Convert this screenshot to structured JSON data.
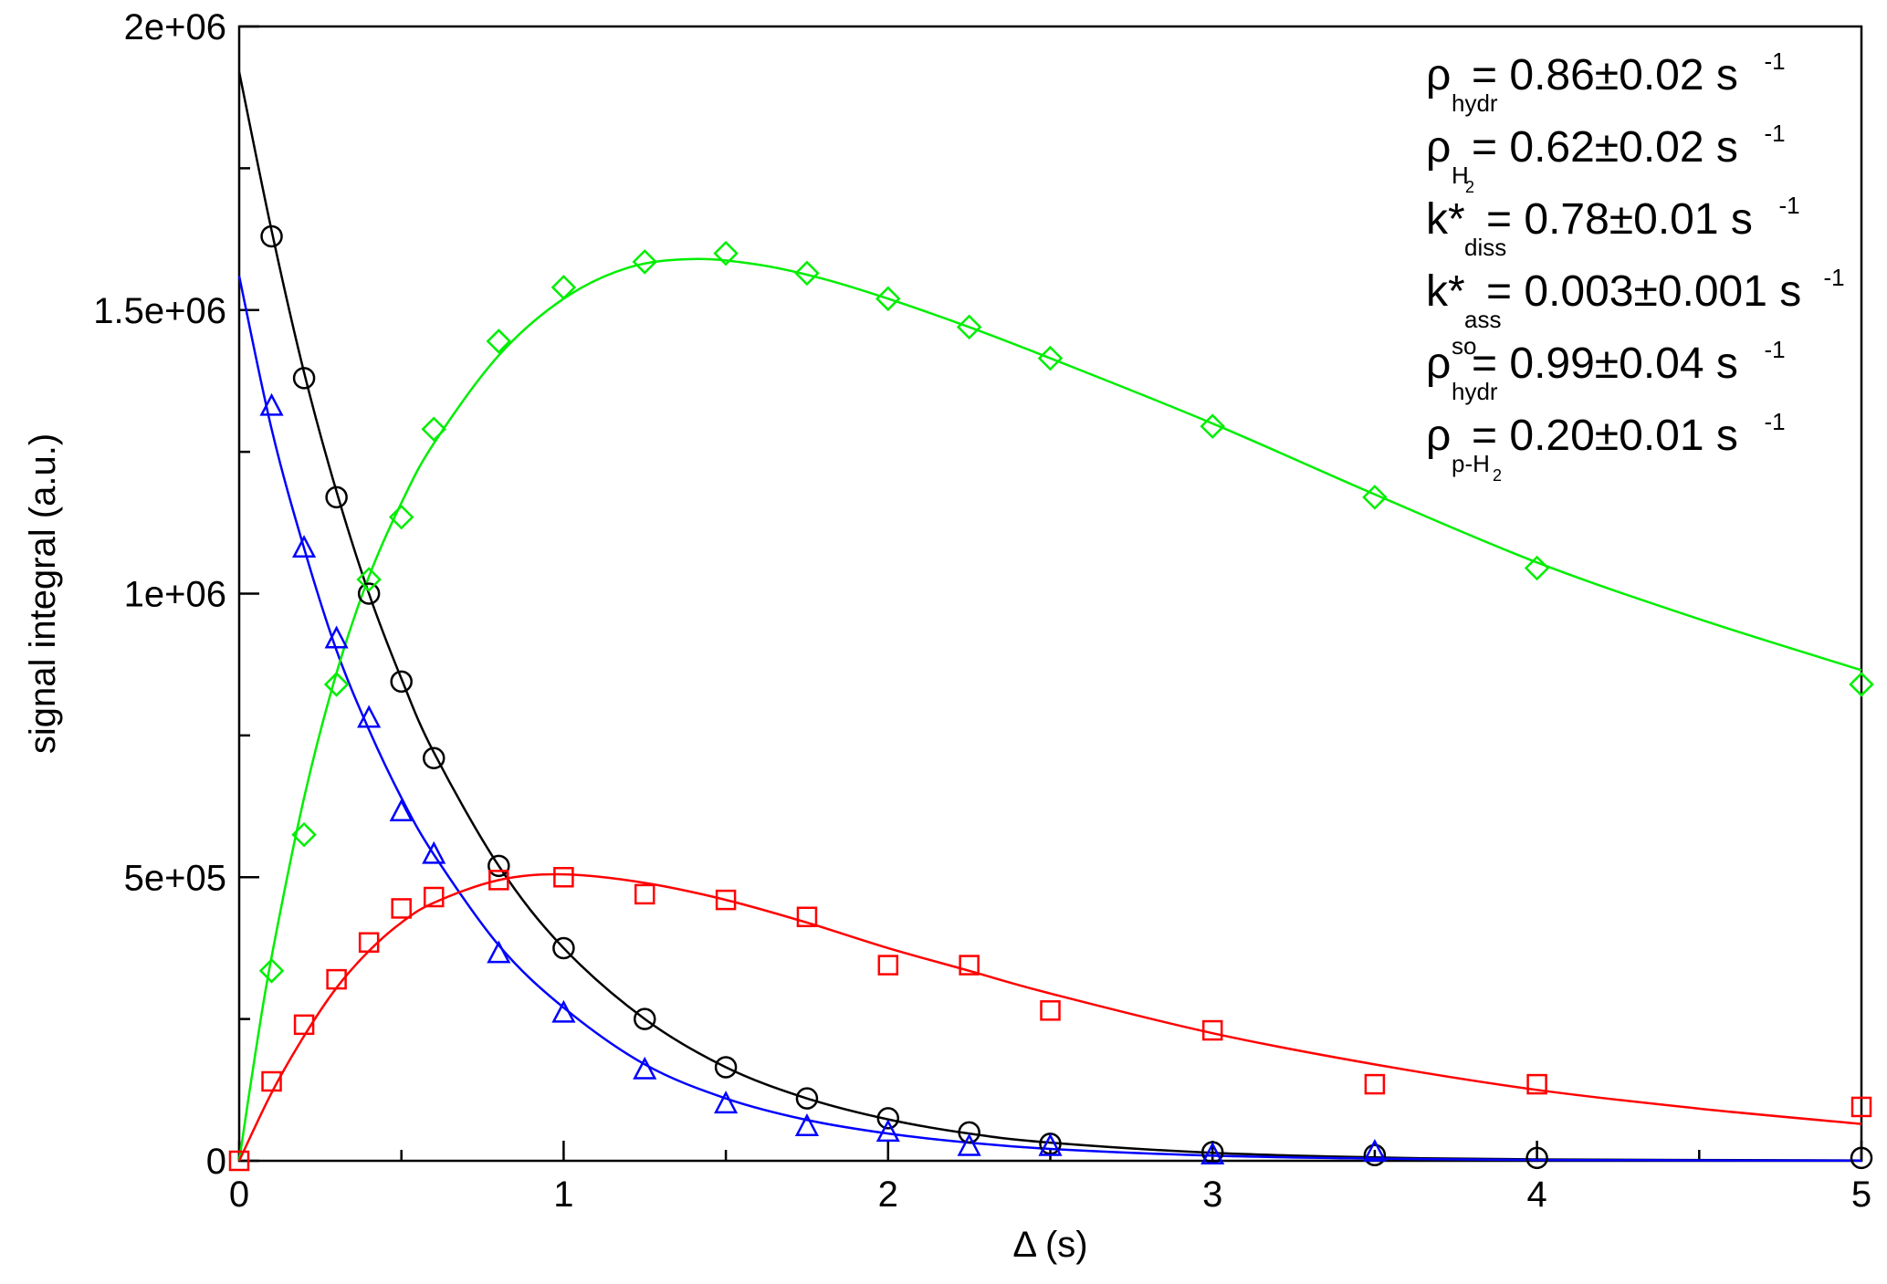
{
  "chart_data": {
    "type": "scatter",
    "xlabel": "Δ (s)",
    "ylabel": "signal integral (a.u.)",
    "xlim": [
      0,
      5
    ],
    "ylim": [
      0,
      2000000
    ],
    "grid": false,
    "x_ticks": [
      {
        "value": 0,
        "label": "0"
      },
      {
        "value": 1,
        "label": "1"
      },
      {
        "value": 2,
        "label": "2"
      },
      {
        "value": 3,
        "label": "3"
      },
      {
        "value": 4,
        "label": "4"
      },
      {
        "value": 5,
        "label": "5"
      }
    ],
    "y_ticks": [
      {
        "value": 0,
        "label": "0"
      },
      {
        "value": 500000,
        "label": "5e+05"
      },
      {
        "value": 1000000,
        "label": "1e+06"
      },
      {
        "value": 1500000,
        "label": "1.5e+06"
      },
      {
        "value": 2000000,
        "label": "2e+06"
      }
    ],
    "x_minor_ticks": [
      0.5,
      1.5,
      2.5,
      3.5,
      4.5
    ],
    "y_minor_ticks": [
      250000,
      750000,
      1250000,
      1750000
    ],
    "series": [
      {
        "color": "#000000",
        "marker": "circle",
        "x": [
          0.1,
          0.2,
          0.3,
          0.4,
          0.5,
          0.6,
          0.8,
          1.0,
          1.25,
          1.5,
          1.75,
          2.0,
          2.25,
          2.5,
          3.0,
          3.5,
          4.0,
          5.0
        ],
        "y": [
          1630000,
          1380000,
          1170000,
          1000000,
          845000,
          710000,
          520000,
          375000,
          250000,
          165000,
          110000,
          75000,
          50000,
          30000,
          15000,
          10000,
          5000,
          5000
        ],
        "fit_x": [
          0,
          0.1,
          0.2,
          0.3,
          0.4,
          0.5,
          0.6,
          0.8,
          1.0,
          1.25,
          1.5,
          1.75,
          2.0,
          2.25,
          2.5,
          3.0,
          3.5,
          4.0,
          5.0
        ],
        "fit_y": [
          1920000,
          1640000,
          1390000,
          1180000,
          1000000,
          850000,
          720000,
          520000,
          375000,
          250000,
          165000,
          110000,
          73000,
          48000,
          32000,
          14000,
          6000,
          2500,
          500
        ]
      },
      {
        "color": "#0000ff",
        "marker": "triangle",
        "x": [
          0.1,
          0.2,
          0.3,
          0.4,
          0.5,
          0.6,
          0.8,
          1.0,
          1.25,
          1.5,
          1.75,
          2.0,
          2.25,
          2.5,
          3.0,
          3.5
        ],
        "y": [
          1330000,
          1080000,
          920000,
          780000,
          615000,
          540000,
          365000,
          260000,
          160000,
          100000,
          60000,
          50000,
          25000,
          25000,
          10000,
          15000
        ],
        "fit_x": [
          0,
          0.1,
          0.2,
          0.3,
          0.4,
          0.5,
          0.6,
          0.8,
          1.0,
          1.25,
          1.5,
          1.75,
          2.0,
          2.25,
          2.5,
          3.0,
          3.5,
          4.0,
          5.0
        ],
        "fit_y": [
          1560000,
          1290000,
          1080000,
          900000,
          760000,
          640000,
          540000,
          380000,
          270000,
          170000,
          110000,
          72000,
          48000,
          32000,
          21000,
          9000,
          4000,
          1500,
          300
        ]
      },
      {
        "color": "#00ee00",
        "marker": "diamond",
        "x": [
          0.1,
          0.2,
          0.3,
          0.4,
          0.5,
          0.6,
          0.8,
          1.0,
          1.25,
          1.5,
          1.75,
          2.0,
          2.25,
          2.5,
          3.0,
          3.5,
          4.0,
          5.0
        ],
        "y": [
          335000,
          575000,
          840000,
          1025000,
          1135000,
          1290000,
          1445000,
          1540000,
          1585000,
          1600000,
          1565000,
          1520000,
          1470000,
          1415000,
          1295000,
          1170000,
          1045000,
          840000
        ],
        "fit_x": [
          0,
          0.05,
          0.1,
          0.2,
          0.3,
          0.4,
          0.5,
          0.6,
          0.8,
          1.0,
          1.2,
          1.4,
          1.6,
          1.8,
          2.0,
          2.25,
          2.5,
          3.0,
          3.5,
          4.0,
          4.5,
          5.0
        ],
        "fit_y": [
          0,
          190000,
          360000,
          640000,
          860000,
          1030000,
          1160000,
          1265000,
          1420000,
          1520000,
          1575000,
          1590000,
          1580000,
          1555000,
          1520000,
          1470000,
          1415000,
          1300000,
          1175000,
          1055000,
          955000,
          865000
        ]
      },
      {
        "color": "#ff0000",
        "marker": "square",
        "x": [
          0,
          0.1,
          0.2,
          0.3,
          0.4,
          0.5,
          0.6,
          0.8,
          1.0,
          1.25,
          1.5,
          1.75,
          2.0,
          2.25,
          2.5,
          3.0,
          3.5,
          4.0,
          5.0
        ],
        "y": [
          0,
          140000,
          240000,
          320000,
          385000,
          445000,
          465000,
          495000,
          500000,
          470000,
          460000,
          430000,
          345000,
          345000,
          265000,
          230000,
          135000,
          135000,
          95000
        ],
        "fit_x": [
          0,
          0.1,
          0.2,
          0.3,
          0.4,
          0.5,
          0.6,
          0.8,
          1.0,
          1.25,
          1.5,
          1.75,
          2.0,
          2.25,
          2.5,
          3.0,
          3.5,
          4.0,
          4.5,
          5.0
        ],
        "fit_y": [
          0,
          120000,
          220000,
          305000,
          370000,
          420000,
          455000,
          495000,
          505000,
          490000,
          460000,
          420000,
          375000,
          335000,
          295000,
          225000,
          170000,
          125000,
          92000,
          65000
        ]
      }
    ],
    "annotations": [
      {
        "symbol": "ρ",
        "sub": "hydr",
        "sup": "",
        "text": "= 0.86±0.02 s",
        "unit_exp": "-1"
      },
      {
        "symbol": "ρ",
        "sub": "H",
        "sub2": "2",
        "sup": "",
        "text": "= 0.62±0.02 s",
        "unit_exp": "-1"
      },
      {
        "symbol": "k*",
        "sub": "diss",
        "sup": "",
        "text": "= 0.78±0.01 s",
        "unit_exp": "-1"
      },
      {
        "symbol": "k*",
        "sub": "ass",
        "sup": "",
        "text": "= 0.003±0.001 s",
        "unit_exp": "-1"
      },
      {
        "symbol": "ρ",
        "sub": "hydr",
        "sup": "so",
        "text": "= 0.99±0.04 s",
        "unit_exp": "-1"
      },
      {
        "symbol": "ρ",
        "sub": "p-H",
        "sub2": "2",
        "sup": "",
        "text": "= 0.20±0.01 s",
        "unit_exp": "-1"
      }
    ]
  }
}
